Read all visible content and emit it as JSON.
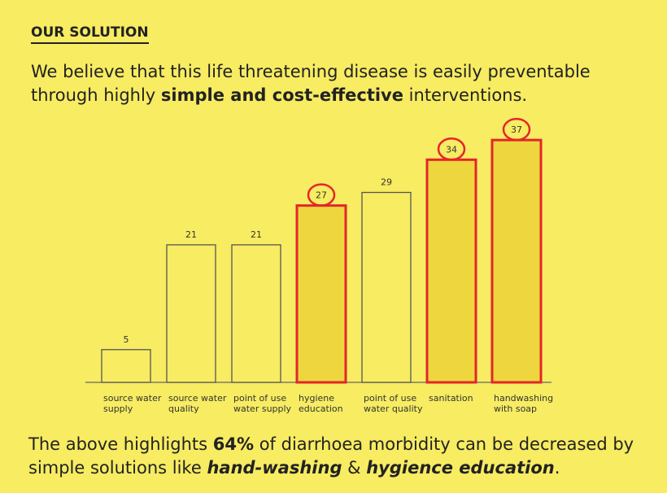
{
  "heading": "OUR SOLUTION",
  "intro": [
    "We believe that this life threatening disease is easily preventable through highly ",
    "simple and cost-effective",
    " interventions."
  ],
  "footer": [
    "The above highlights ",
    "64%",
    " of diarrhoea morbidity can be decreased by simple solutions like ",
    "hand-washing",
    " & ",
    "hygience education",
    "."
  ],
  "chart_data": {
    "type": "bar",
    "categories": [
      "source water supply",
      "source water quality",
      "point of use water supply",
      "hygiene education",
      "point of use water quality",
      "sanitation",
      "handwashing with soap"
    ],
    "values": [
      5,
      21,
      21,
      27,
      29,
      34,
      37
    ],
    "colors": [
      "#f7ec62",
      "#f7ec62",
      "#f7ec62",
      "#eed73e",
      "#f7ec62",
      "#eed73e",
      "#eed73e"
    ],
    "edge_colors": [
      "#555555",
      "#555555",
      "#555555",
      "#e3262b",
      "#555555",
      "#e3262b",
      "#e3262b"
    ]
  }
}
